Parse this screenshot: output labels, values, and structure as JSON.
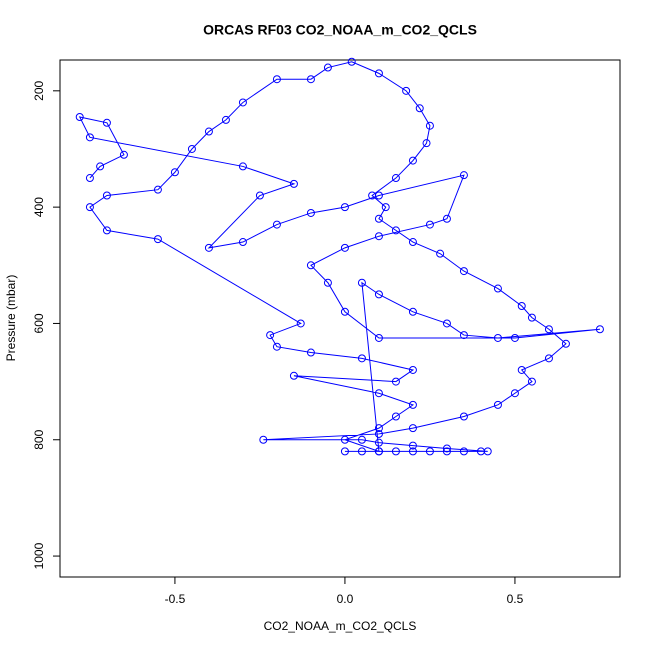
{
  "chart_data": {
    "type": "line",
    "title": "ORCAS RF03 CO2_NOAA_m_CO2_QCLS",
    "x_label": "CO2_NOAA_m_CO2_QCLS",
    "y_label": "Pressure (mbar)",
    "xlim": [
      -0.838,
      0.809
    ],
    "ylim": [
      1036,
      147
    ],
    "xticks": [
      -0.5,
      {
        "value": 0,
        "label": "0.0"
      },
      0.5
    ],
    "yticks": [
      200,
      400,
      600,
      800,
      1000
    ],
    "series": [
      {
        "name": "CO2_NOAA_m_CO2_QCLS",
        "color": "#0000ff",
        "x": [
          0.0,
          0.05,
          0.1,
          0.15,
          0.2,
          0.25,
          0.3,
          0.35,
          0.4,
          0.42,
          0.3,
          0.2,
          0.1,
          0.05,
          -0.24,
          0.1,
          0.2,
          0.35,
          0.45,
          0.5,
          0.55,
          0.52,
          0.6,
          0.65,
          0.6,
          0.55,
          0.52,
          0.45,
          0.35,
          0.28,
          0.2,
          0.15,
          0.1,
          0.12,
          0.08,
          0.15,
          0.2,
          0.24,
          0.25,
          0.22,
          0.18,
          0.1,
          0.02,
          -0.05,
          -0.1,
          -0.2,
          -0.3,
          -0.35,
          -0.4,
          -0.45,
          -0.5,
          -0.55,
          -0.7,
          -0.75,
          -0.7,
          -0.55,
          -0.13,
          -0.22,
          -0.2,
          -0.1,
          0.05,
          0.2,
          0.15,
          -0.15,
          0.1,
          0.2,
          0.15,
          0.1,
          0.0,
          0.1,
          0.05,
          0.1,
          0.2,
          0.3,
          0.35,
          0.45,
          0.75,
          0.5,
          0.1,
          0.0,
          -0.05,
          -0.1,
          0.0,
          0.1,
          0.25,
          0.3,
          0.35,
          0.1,
          0.0,
          -0.1,
          -0.2,
          -0.3,
          -0.4,
          -0.25,
          -0.15,
          -0.3,
          -0.75,
          -0.78,
          -0.7,
          -0.65,
          -0.72,
          -0.75
        ],
        "values": [
          820,
          820,
          820,
          820,
          820,
          820,
          820,
          820,
          820,
          820,
          815,
          810,
          805,
          800,
          800,
          790,
          780,
          760,
          740,
          720,
          700,
          680,
          660,
          635,
          610,
          590,
          570,
          540,
          510,
          480,
          460,
          440,
          420,
          400,
          380,
          350,
          320,
          290,
          260,
          230,
          200,
          170,
          150,
          160,
          180,
          180,
          220,
          250,
          270,
          300,
          340,
          370,
          380,
          400,
          440,
          455,
          600,
          620,
          640,
          650,
          660,
          680,
          700,
          690,
          720,
          740,
          760,
          780,
          800,
          820,
          530,
          550,
          580,
          600,
          620,
          625,
          610,
          625,
          625,
          580,
          530,
          500,
          470,
          450,
          430,
          420,
          345,
          380,
          400,
          410,
          430,
          460,
          470,
          380,
          360,
          330,
          280,
          245,
          255,
          310,
          330,
          350
        ]
      }
    ]
  }
}
